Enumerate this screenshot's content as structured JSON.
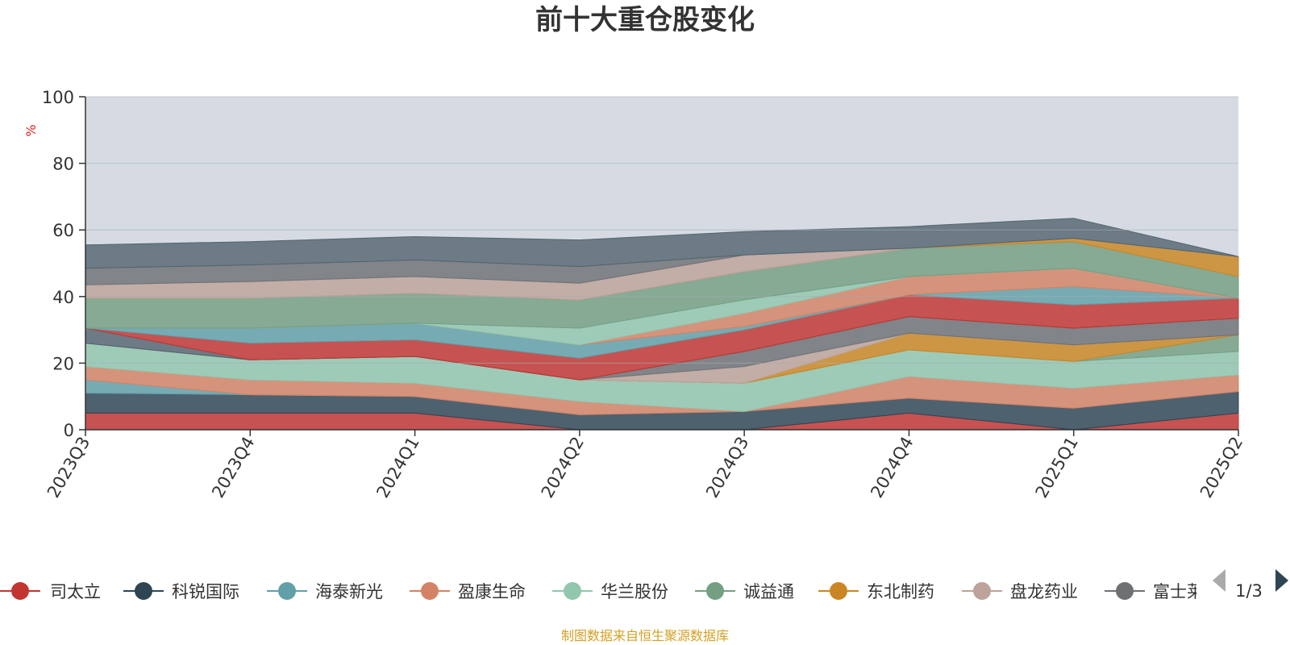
{
  "page": {
    "title": "前十大重仓股变化",
    "source": "制图数据来自恒生聚源数据库",
    "legend_pager": "1/3"
  },
  "chart_data": {
    "type": "area",
    "stacked": true,
    "title": "前十大重仓股变化",
    "ylabel": "%",
    "ylim": [
      0,
      100
    ],
    "yticks": [
      0,
      20,
      40,
      60,
      80,
      100
    ],
    "categories": [
      "2023Q3",
      "2023Q4",
      "2024Q1",
      "2024Q2",
      "2024Q3",
      "2024Q4",
      "2025Q1",
      "2025Q2"
    ],
    "grid": true,
    "legend_position": "bottom",
    "series": [
      {
        "name": "司太立",
        "color": "#c23531",
        "values": [
          5,
          5,
          5,
          0,
          0,
          5,
          0,
          5
        ]
      },
      {
        "name": "科锐国际",
        "color": "#2f4554",
        "values": [
          6,
          5.5,
          5,
          4.5,
          5.5,
          4.5,
          6.5,
          6.5
        ]
      },
      {
        "name": "海泰新光",
        "color": "#61a0a8",
        "values": [
          4,
          0,
          0,
          0,
          0,
          0,
          0,
          0
        ]
      },
      {
        "name": "盈康生命",
        "color": "#d48265",
        "values": [
          4,
          4.5,
          4,
          4,
          0,
          6.5,
          6,
          5
        ]
      },
      {
        "name": "华兰股份",
        "color": "#91c7ae",
        "values": [
          7,
          6,
          8,
          6.5,
          8.5,
          8,
          8,
          7
        ]
      },
      {
        "name": "诚益通",
        "color": "#749f83",
        "values": [
          0,
          0,
          0,
          0,
          0,
          0,
          0,
          5
        ]
      },
      {
        "name": "东北制药",
        "color": "#ca8622",
        "values": [
          0,
          0,
          0,
          0,
          0,
          5,
          5,
          0
        ]
      },
      {
        "name": "盘龙药业",
        "color": "#bda29a",
        "values": [
          0,
          0,
          0,
          0,
          5,
          0,
          0,
          0
        ]
      },
      {
        "name": "富士莱",
        "color": "#6e7074",
        "values": [
          0,
          0,
          0,
          0,
          4.5,
          5,
          5,
          5
        ]
      },
      {
        "name": "",
        "color": "#546570",
        "values": [
          4.5,
          0,
          0,
          0,
          0,
          0,
          0,
          0
        ]
      },
      {
        "name": "",
        "color": "#c23531",
        "values": [
          0,
          5,
          5,
          6.5,
          6.5,
          6.5,
          7,
          6
        ]
      },
      {
        "name": "",
        "color": "#61a0a8",
        "values": [
          0,
          4.5,
          5,
          4,
          1,
          0,
          5.5,
          0
        ]
      },
      {
        "name": "",
        "color": "#d48265",
        "values": [
          0,
          0,
          0,
          0,
          4,
          5.5,
          5.5,
          0
        ]
      },
      {
        "name": "",
        "color": "#91c7ae",
        "values": [
          0,
          0,
          0,
          5,
          4,
          0,
          0,
          0
        ]
      },
      {
        "name": "",
        "color": "#749f83",
        "values": [
          9,
          9,
          9,
          8.5,
          8.5,
          8.5,
          8,
          6.5
        ]
      },
      {
        "name": "",
        "color": "#ca8622",
        "values": [
          0,
          0,
          0,
          0,
          0,
          0,
          1,
          6
        ]
      },
      {
        "name": "",
        "color": "#bda29a",
        "values": [
          4,
          5,
          5,
          5,
          5,
          0,
          0,
          0
        ]
      },
      {
        "name": "",
        "color": "#6e7074",
        "values": [
          5,
          5,
          5,
          5,
          0,
          0,
          0,
          0
        ]
      },
      {
        "name": "",
        "color": "#546570",
        "values": [
          7,
          7,
          7,
          8,
          7,
          6.5,
          6,
          0
        ]
      }
    ]
  }
}
